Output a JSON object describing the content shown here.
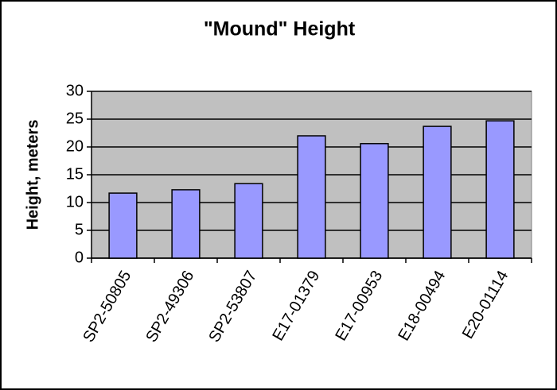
{
  "chart_data": {
    "type": "bar",
    "title": "\"Mound\" Height",
    "y_label": "Height, meters",
    "categories": [
      "SP2-50805",
      "SP2-49306",
      "SP2-53807",
      "E17-01379",
      "E17-00953",
      "E18-00494",
      "E20-01114"
    ],
    "values": [
      11.7,
      12.3,
      13.4,
      22,
      20.6,
      23.7,
      24.7
    ],
    "color": "#9999ff",
    "ylim": [
      0,
      30
    ],
    "yticks": [
      0,
      5,
      10,
      15,
      20,
      25,
      30
    ],
    "grid": true
  }
}
